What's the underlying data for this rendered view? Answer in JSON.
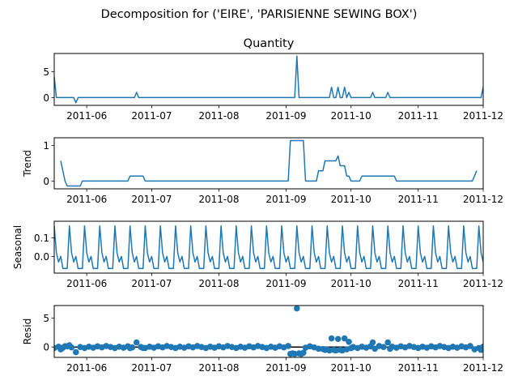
{
  "figure": {
    "suptitle": "Decomposition for ('EIRE', 'PARISIENNE SEWING BOX')"
  },
  "chart_data": [
    {
      "type": "line",
      "title": "Quantity",
      "ylabel": "",
      "x_range": [
        "2011-05-17",
        "2011-12-01"
      ],
      "x_ticks": [
        "2011-06",
        "2011-07",
        "2011-08",
        "2011-09",
        "2011-10",
        "2011-11",
        "2011-12"
      ],
      "ylim": [
        -1.5,
        8.5
      ],
      "y_ticks": [
        0,
        5
      ],
      "color": "#1f77b4",
      "series": [
        {
          "points": [
            [
              "2011-05-17",
              4.0
            ],
            [
              "2011-05-18",
              0
            ],
            [
              "2011-05-26",
              0
            ],
            [
              "2011-05-27",
              -1
            ],
            [
              "2011-05-28",
              0
            ],
            [
              "2011-06-23",
              0
            ],
            [
              "2011-06-24",
              1
            ],
            [
              "2011-06-25",
              0
            ],
            [
              "2011-09-05",
              0
            ],
            [
              "2011-09-06",
              8
            ],
            [
              "2011-09-07",
              0
            ],
            [
              "2011-09-21",
              0
            ],
            [
              "2011-09-22",
              2
            ],
            [
              "2011-09-23",
              0
            ],
            [
              "2011-09-24",
              0
            ],
            [
              "2011-09-25",
              2
            ],
            [
              "2011-09-26",
              0
            ],
            [
              "2011-09-27",
              0
            ],
            [
              "2011-09-28",
              2
            ],
            [
              "2011-09-29",
              0
            ],
            [
              "2011-09-30",
              1
            ],
            [
              "2011-10-01",
              0
            ],
            [
              "2011-10-10",
              0
            ],
            [
              "2011-10-11",
              1
            ],
            [
              "2011-10-12",
              0
            ],
            [
              "2011-10-17",
              0
            ],
            [
              "2011-10-18",
              1
            ],
            [
              "2011-10-19",
              0
            ],
            [
              "2011-11-30",
              0
            ],
            [
              "2011-12-01",
              2
            ]
          ]
        }
      ]
    },
    {
      "type": "line",
      "title": "",
      "ylabel": "Trend",
      "x_range": [
        "2011-05-17",
        "2011-12-01"
      ],
      "x_ticks": [
        "2011-06",
        "2011-07",
        "2011-08",
        "2011-09",
        "2011-10",
        "2011-11",
        "2011-12"
      ],
      "ylim": [
        -0.22,
        1.22
      ],
      "y_ticks": [
        0,
        1
      ],
      "color": "#1f77b4",
      "series": [
        {
          "points": [
            [
              "2011-05-20",
              0.57
            ],
            [
              "2011-05-22",
              0.0
            ],
            [
              "2011-05-23",
              -0.14
            ],
            [
              "2011-05-29",
              -0.14
            ],
            [
              "2011-05-30",
              0.0
            ],
            [
              "2011-06-20",
              0.0
            ],
            [
              "2011-06-21",
              0.14
            ],
            [
              "2011-06-27",
              0.14
            ],
            [
              "2011-06-28",
              0.0
            ],
            [
              "2011-09-02",
              0.0
            ],
            [
              "2011-09-03",
              1.14
            ],
            [
              "2011-09-09",
              1.14
            ],
            [
              "2011-09-10",
              0.0
            ],
            [
              "2011-09-15",
              0.0
            ],
            [
              "2011-09-16",
              0.29
            ],
            [
              "2011-09-18",
              0.29
            ],
            [
              "2011-09-19",
              0.57
            ],
            [
              "2011-09-24",
              0.57
            ],
            [
              "2011-09-25",
              0.71
            ],
            [
              "2011-09-26",
              0.43
            ],
            [
              "2011-09-28",
              0.43
            ],
            [
              "2011-09-29",
              0.14
            ],
            [
              "2011-09-30",
              0.14
            ],
            [
              "2011-10-01",
              0.0
            ],
            [
              "2011-10-05",
              0.0
            ],
            [
              "2011-10-06",
              0.14
            ],
            [
              "2011-10-21",
              0.14
            ],
            [
              "2011-10-22",
              0.0
            ],
            [
              "2011-11-26",
              0.0
            ],
            [
              "2011-11-28",
              0.29
            ]
          ]
        }
      ]
    },
    {
      "type": "line",
      "title": "",
      "ylabel": "Seasonal",
      "x_range": [
        "2011-05-17",
        "2011-12-01"
      ],
      "x_ticks": [
        "2011-06",
        "2011-07",
        "2011-08",
        "2011-09",
        "2011-10",
        "2011-11",
        "2011-12"
      ],
      "ylim": [
        -0.09,
        0.19
      ],
      "y_ticks": [
        0.0,
        0.1
      ],
      "y_tick_labels": [
        "0.0",
        "0.1"
      ],
      "color": "#1f77b4",
      "seasonal_period_days": 7,
      "series": [
        {
          "cycle_values": [
            0.165,
            0.02,
            -0.03,
            0.0,
            -0.065,
            -0.065,
            -0.065
          ]
        }
      ]
    },
    {
      "type": "scatter",
      "title": "",
      "ylabel": "Resid",
      "x_range": [
        "2011-05-17",
        "2011-12-01"
      ],
      "x_ticks": [
        "2011-06",
        "2011-07",
        "2011-08",
        "2011-09",
        "2011-10",
        "2011-11",
        "2011-12"
      ],
      "ylim": [
        -1.8,
        7.2
      ],
      "y_ticks": [
        0,
        5
      ],
      "color": "#1f77b4",
      "baseline": 0,
      "series": [
        {
          "points": [
            [
              "2011-05-20",
              -0.4
            ],
            [
              "2011-05-22",
              0.15
            ],
            [
              "2011-05-24",
              0.3
            ],
            [
              "2011-05-27",
              -0.9
            ],
            [
              "2011-06-24",
              0.8
            ],
            [
              "2011-06-21",
              -0.2
            ],
            [
              "2011-06-27",
              -0.15
            ],
            [
              "2011-09-03",
              -1.2
            ],
            [
              "2011-09-04",
              -1.1
            ],
            [
              "2011-09-05",
              -1.2
            ],
            [
              "2011-09-06",
              6.7
            ],
            [
              "2011-09-07",
              -1.1
            ],
            [
              "2011-09-08",
              -1.2
            ],
            [
              "2011-09-09",
              -1.0
            ],
            [
              "2011-09-16",
              -0.3
            ],
            [
              "2011-09-18",
              -0.35
            ],
            [
              "2011-09-19",
              -0.5
            ],
            [
              "2011-09-20",
              -0.4
            ],
            [
              "2011-09-21",
              -0.6
            ],
            [
              "2011-09-22",
              1.5
            ],
            [
              "2011-09-23",
              -0.5
            ],
            [
              "2011-09-24",
              -0.6
            ],
            [
              "2011-09-25",
              1.4
            ],
            [
              "2011-09-26",
              -0.5
            ],
            [
              "2011-09-27",
              -0.6
            ],
            [
              "2011-09-28",
              1.5
            ],
            [
              "2011-09-29",
              -0.4
            ],
            [
              "2011-09-30",
              0.9
            ],
            [
              "2011-10-01",
              -0.2
            ],
            [
              "2011-10-11",
              0.8
            ],
            [
              "2011-10-12",
              -0.3
            ],
            [
              "2011-10-18",
              0.8
            ],
            [
              "2011-10-19",
              -0.3
            ],
            [
              "2011-11-27",
              -0.4
            ],
            [
              "2011-11-30",
              -0.5
            ]
          ],
          "background_zero_band": true
        }
      ]
    }
  ]
}
